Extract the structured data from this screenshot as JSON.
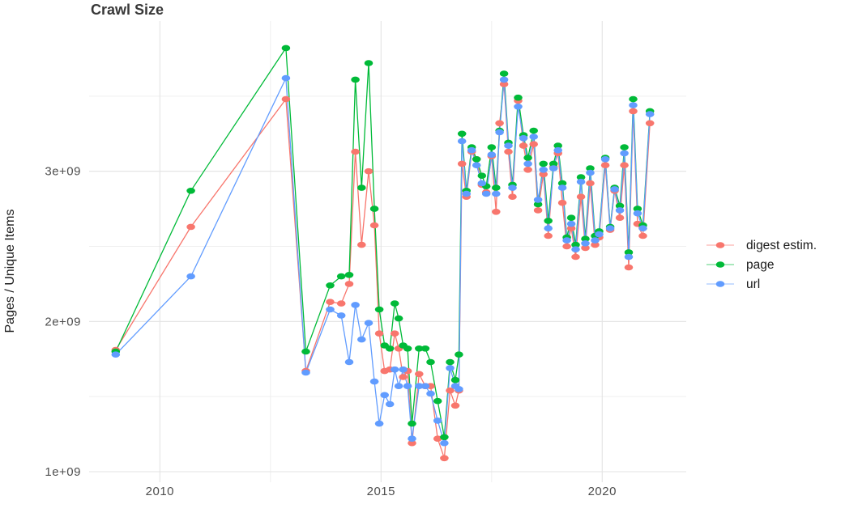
{
  "page": {
    "background": "#ffffff"
  },
  "chart_data": {
    "type": "line",
    "title": "Crawl Size",
    "xlabel": "",
    "ylabel": "Pages / Unique Items",
    "grid": true,
    "legend_position": "right",
    "axis_text_color": "#4e4e4e",
    "gridline_color_major": "#e3e3e3",
    "gridline_color_minor": "#efefef",
    "x_domain": [
      2008.4,
      2021.9
    ],
    "y_domain": [
      930000000,
      4000000000
    ],
    "x_ticks": {
      "values": [
        2010,
        2015,
        2020
      ],
      "labels": [
        "2010",
        "2015",
        "2020"
      ]
    },
    "x_minor_gridlines": [
      2012.5,
      2017.5
    ],
    "y_ticks": {
      "values": [
        1000000000,
        2000000000,
        3000000000
      ],
      "labels": [
        "1e+09",
        "2e+09",
        "3e+09"
      ]
    },
    "y_minor_gridlines": [
      1500000000,
      2500000000,
      3500000000
    ],
    "x": [
      2009.0,
      2010.7,
      2012.85,
      2013.3,
      2013.85,
      2014.1,
      2014.28,
      2014.42,
      2014.56,
      2014.72,
      2014.85,
      2014.96,
      2015.08,
      2015.2,
      2015.31,
      2015.4,
      2015.5,
      2015.6,
      2015.7,
      2015.86,
      2016.0,
      2016.12,
      2016.28,
      2016.43,
      2016.56,
      2016.68,
      2016.76,
      2016.83,
      2016.93,
      2017.05,
      2017.16,
      2017.28,
      2017.38,
      2017.5,
      2017.6,
      2017.68,
      2017.78,
      2017.88,
      2017.97,
      2018.1,
      2018.22,
      2018.32,
      2018.45,
      2018.55,
      2018.67,
      2018.78,
      2018.9,
      2019.0,
      2019.1,
      2019.2,
      2019.3,
      2019.4,
      2019.52,
      2019.62,
      2019.73,
      2019.84,
      2019.93,
      2020.07,
      2020.18,
      2020.28,
      2020.4,
      2020.5,
      2020.6,
      2020.7,
      2020.8,
      2020.92,
      2021.08
    ],
    "series": [
      {
        "name": "digest estim.",
        "color": "#F8766D",
        "values": [
          1810000000.0,
          2630000000.0,
          3480000000.0,
          1670000000.0,
          2130000000.0,
          2120000000.0,
          2250000000.0,
          3130000000.0,
          2510000000.0,
          3000000000.0,
          2640000000.0,
          1920000000.0,
          1670000000.0,
          1680000000.0,
          1920000000.0,
          1820000000.0,
          1630000000.0,
          1670000000.0,
          1190000000.0,
          1650000000.0,
          1570000000.0,
          1570000000.0,
          1220000000.0,
          1090000000.0,
          1540000000.0,
          1440000000.0,
          1540000000.0,
          3050000000.0,
          2830000000.0,
          3130000000.0,
          3080000000.0,
          2910000000.0,
          2860000000.0,
          3100000000.0,
          2730000000.0,
          3320000000.0,
          3580000000.0,
          3130000000.0,
          2830000000.0,
          3470000000.0,
          3170000000.0,
          3010000000.0,
          3180000000.0,
          2740000000.0,
          2980000000.0,
          2570000000.0,
          3030000000.0,
          3120000000.0,
          2790000000.0,
          2500000000.0,
          2620000000.0,
          2430000000.0,
          2830000000.0,
          2490000000.0,
          2920000000.0,
          2510000000.0,
          2560000000.0,
          3040000000.0,
          2610000000.0,
          2870000000.0,
          2690000000.0,
          3040000000.0,
          2360000000.0,
          3400000000.0,
          2650000000.0,
          2570000000.0,
          3320000000.0
        ]
      },
      {
        "name": "page",
        "color": "#00BA38",
        "values": [
          1800000000.0,
          2870000000.0,
          3820000000.0,
          1800000000.0,
          2240000000.0,
          2300000000.0,
          2310000000.0,
          3610000000.0,
          2890000000.0,
          3720000000.0,
          2750000000.0,
          2080000000.0,
          1840000000.0,
          1820000000.0,
          2120000000.0,
          2020000000.0,
          1840000000.0,
          1820000000.0,
          1320000000.0,
          1820000000.0,
          1820000000.0,
          1730000000.0,
          1470000000.0,
          1230000000.0,
          1730000000.0,
          1610000000.0,
          1780000000.0,
          3250000000.0,
          2870000000.0,
          3160000000.0,
          3080000000.0,
          2970000000.0,
          2900000000.0,
          3160000000.0,
          2890000000.0,
          3270000000.0,
          3650000000.0,
          3190000000.0,
          2910000000.0,
          3490000000.0,
          3240000000.0,
          3090000000.0,
          3270000000.0,
          2780000000.0,
          3050000000.0,
          2670000000.0,
          3050000000.0,
          3170000000.0,
          2920000000.0,
          2560000000.0,
          2690000000.0,
          2510000000.0,
          2960000000.0,
          2550000000.0,
          3020000000.0,
          2570000000.0,
          2600000000.0,
          3090000000.0,
          2630000000.0,
          2890000000.0,
          2770000000.0,
          3160000000.0,
          2460000000.0,
          3480000000.0,
          2750000000.0,
          2640000000.0,
          3400000000.0
        ]
      },
      {
        "name": "url",
        "color": "#619CFF",
        "values": [
          1780000000.0,
          2300000000.0,
          3620000000.0,
          1660000000.0,
          2080000000.0,
          2040000000.0,
          1730000000.0,
          2110000000.0,
          1880000000.0,
          1990000000.0,
          1600000000.0,
          1320000000.0,
          1510000000.0,
          1450000000.0,
          1680000000.0,
          1570000000.0,
          1680000000.0,
          1570000000.0,
          1220000000.0,
          1570000000.0,
          1570000000.0,
          1520000000.0,
          1340000000.0,
          1190000000.0,
          1690000000.0,
          1570000000.0,
          1550000000.0,
          3200000000.0,
          2850000000.0,
          3140000000.0,
          3040000000.0,
          2920000000.0,
          2850000000.0,
          3110000000.0,
          2850000000.0,
          3260000000.0,
          3610000000.0,
          3170000000.0,
          2890000000.0,
          3430000000.0,
          3220000000.0,
          3050000000.0,
          3230000000.0,
          2810000000.0,
          3010000000.0,
          2620000000.0,
          3020000000.0,
          3140000000.0,
          2890000000.0,
          2540000000.0,
          2650000000.0,
          2480000000.0,
          2930000000.0,
          2520000000.0,
          2990000000.0,
          2540000000.0,
          2580000000.0,
          3080000000.0,
          2620000000.0,
          2880000000.0,
          2740000000.0,
          3120000000.0,
          2430000000.0,
          3440000000.0,
          2720000000.0,
          2620000000.0,
          3380000000.0
        ]
      }
    ]
  }
}
